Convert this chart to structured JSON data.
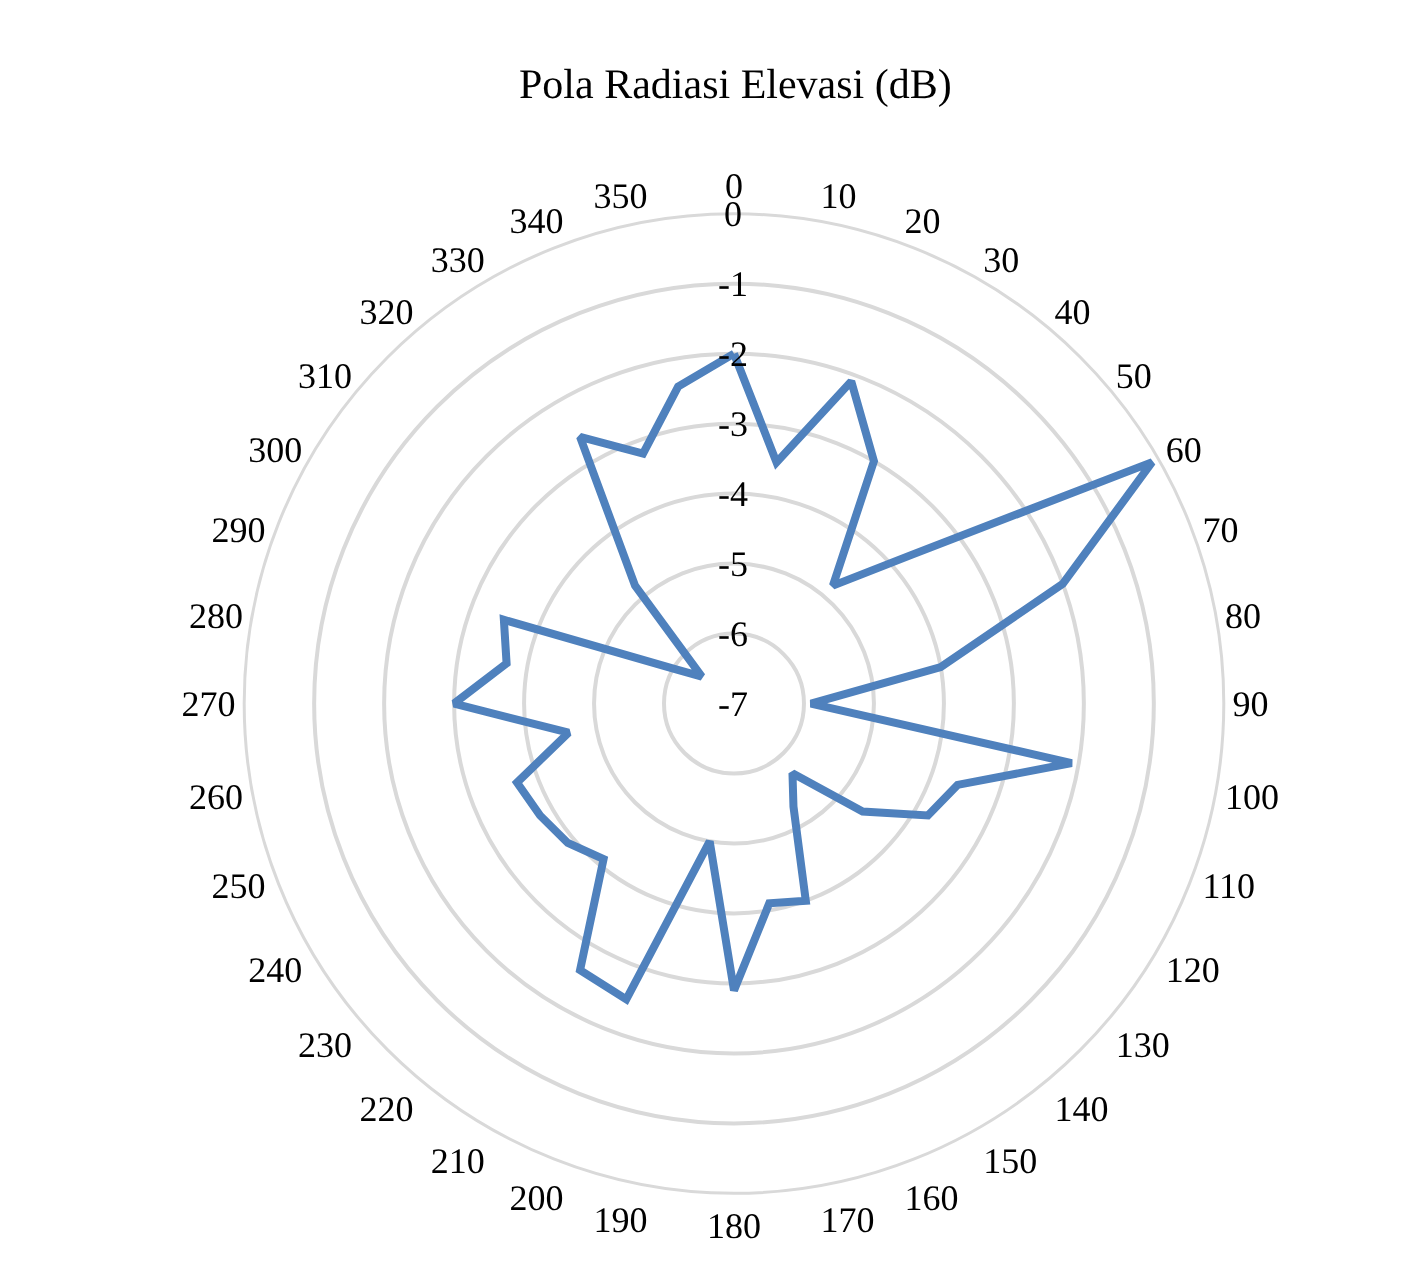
{
  "chart_data": {
    "type": "radar",
    "title": "Pola Radiasi Elevasi (dB)",
    "categories": [
      "0",
      "10",
      "20",
      "30",
      "40",
      "50",
      "60",
      "70",
      "80",
      "90",
      "100",
      "110",
      "120",
      "130",
      "140",
      "150",
      "160",
      "170",
      "180",
      "190",
      "200",
      "210",
      "220",
      "230",
      "240",
      "250",
      "260",
      "270",
      "280",
      "290",
      "300",
      "310",
      "320",
      "330",
      "340",
      "350"
    ],
    "series": [
      {
        "color": "#4f81bd",
        "values": [
          -2.0,
          -3.5,
          -2.1,
          -3.0,
          -4.8,
          -3.7,
          -0.1,
          -2.0,
          -4.0,
          -5.9,
          -2.1,
          -3.6,
          -3.8,
          -4.6,
          -5.7,
          -5.3,
          -4.0,
          -4.1,
          -2.9,
          -5.0,
          -2.5,
          -2.6,
          -4.1,
          -3.9,
          -3.8,
          -3.7,
          -4.6,
          -3.0,
          -3.7,
          -3.5,
          -6.0,
          -6.4,
          -4.8,
          -2.6,
          -3.2,
          -2.4
        ]
      }
    ],
    "ylim": [
      -7,
      0
    ],
    "yticks": [
      -7,
      -6,
      -5,
      -4,
      -3,
      -2,
      -1,
      0
    ],
    "grid": true,
    "marker": "none",
    "line_style": "solid"
  }
}
